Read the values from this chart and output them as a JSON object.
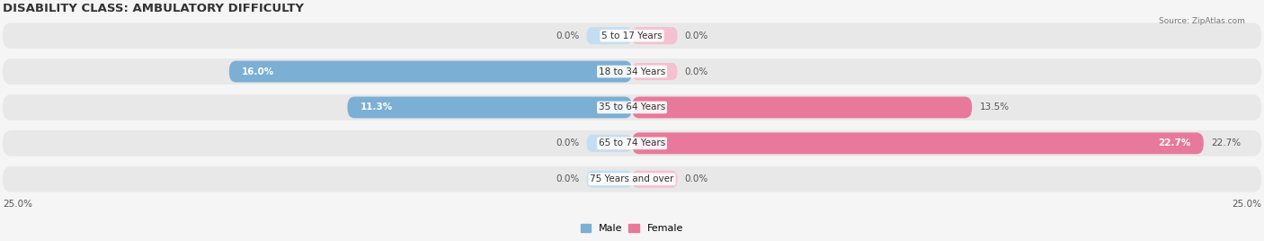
{
  "title": "DISABILITY CLASS: AMBULATORY DIFFICULTY",
  "source": "Source: ZipAtlas.com",
  "categories": [
    "5 to 17 Years",
    "18 to 34 Years",
    "35 to 64 Years",
    "65 to 74 Years",
    "75 Years and over"
  ],
  "male_values": [
    0.0,
    16.0,
    11.3,
    0.0,
    0.0
  ],
  "female_values": [
    0.0,
    0.0,
    13.5,
    22.7,
    0.0
  ],
  "max_val": 25.0,
  "male_color": "#7bafd4",
  "female_color": "#e8799a",
  "male_color_light": "#c5ddf0",
  "female_color_light": "#f5c0d0",
  "row_bg": "#ebebeb",
  "title_fontsize": 9.5,
  "label_fontsize": 7.5,
  "value_fontsize": 7.5,
  "legend_fontsize": 8
}
